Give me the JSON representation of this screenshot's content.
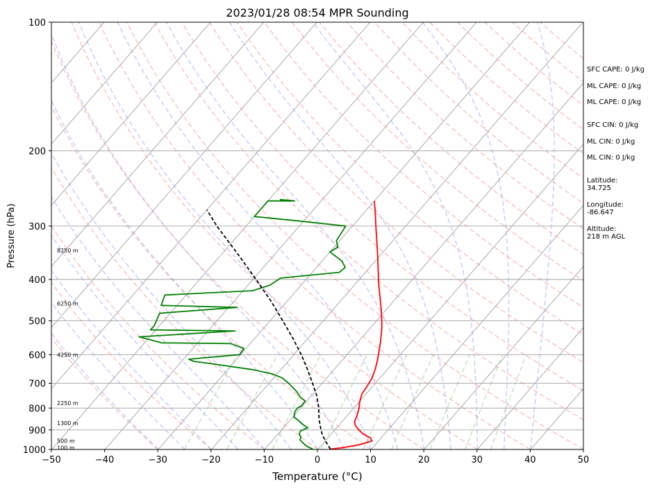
{
  "chart_data": {
    "type": "line",
    "title": "2023/01/28 08:54 MPR Sounding",
    "xlabel": "Temperature (°C)",
    "ylabel": "Pressure (hPa)",
    "xlim": [
      -50,
      50
    ],
    "ylim": [
      1000,
      100
    ],
    "y_scale": "log",
    "x_ticks": [
      "−50",
      "−40",
      "−30",
      "−20",
      "−10",
      "0",
      "10",
      "20",
      "30",
      "40",
      "50"
    ],
    "y_ticks": [
      "100",
      "200",
      "300",
      "400",
      "500",
      "600",
      "700",
      "800",
      "900",
      "1000"
    ],
    "grid": true,
    "skew_t": true,
    "temperature": {
      "color": "#ff0000",
      "points": [
        {
          "p": 998,
          "t": 2.3
        },
        {
          "p": 990,
          "t": 4.5
        },
        {
          "p": 975,
          "t": 7.0
        },
        {
          "p": 955,
          "t": 8.8
        },
        {
          "p": 940,
          "t": 8.0
        },
        {
          "p": 920,
          "t": 6.0
        },
        {
          "p": 900,
          "t": 4.5
        },
        {
          "p": 880,
          "t": 3.2
        },
        {
          "p": 860,
          "t": 2.3
        },
        {
          "p": 840,
          "t": 2.0
        },
        {
          "p": 820,
          "t": 1.5
        },
        {
          "p": 800,
          "t": 1.0
        },
        {
          "p": 780,
          "t": 0.3
        },
        {
          "p": 760,
          "t": -0.3
        },
        {
          "p": 740,
          "t": -0.8
        },
        {
          "p": 720,
          "t": -1.0
        },
        {
          "p": 700,
          "t": -1.2
        },
        {
          "p": 680,
          "t": -1.5
        },
        {
          "p": 650,
          "t": -2.3
        },
        {
          "p": 620,
          "t": -3.3
        },
        {
          "p": 600,
          "t": -4.1
        },
        {
          "p": 560,
          "t": -5.8
        },
        {
          "p": 520,
          "t": -7.8
        },
        {
          "p": 500,
          "t": -9.0
        },
        {
          "p": 470,
          "t": -11.0
        },
        {
          "p": 440,
          "t": -13.2
        },
        {
          "p": 410,
          "t": -15.6
        },
        {
          "p": 380,
          "t": -18.0
        },
        {
          "p": 350,
          "t": -20.6
        },
        {
          "p": 320,
          "t": -23.5
        },
        {
          "p": 300,
          "t": -25.6
        },
        {
          "p": 280,
          "t": -27.8
        },
        {
          "p": 262,
          "t": -30.0
        }
      ]
    },
    "dewpoint": {
      "color": "#008000",
      "points": [
        {
          "p": 998,
          "t": -1.0
        },
        {
          "p": 985,
          "t": -2.4
        },
        {
          "p": 965,
          "t": -3.9
        },
        {
          "p": 950,
          "t": -4.9
        },
        {
          "p": 935,
          "t": -5.2
        },
        {
          "p": 920,
          "t": -6.0
        },
        {
          "p": 905,
          "t": -6.3
        },
        {
          "p": 890,
          "t": -5.4
        },
        {
          "p": 875,
          "t": -6.8
        },
        {
          "p": 855,
          "t": -8.4
        },
        {
          "p": 840,
          "t": -9.8
        },
        {
          "p": 815,
          "t": -10.5
        },
        {
          "p": 800,
          "t": -10.6
        },
        {
          "p": 790,
          "t": -10.2
        },
        {
          "p": 770,
          "t": -10.3
        },
        {
          "p": 755,
          "t": -11.8
        },
        {
          "p": 730,
          "t": -13.6
        },
        {
          "p": 700,
          "t": -16.3
        },
        {
          "p": 680,
          "t": -18.4
        },
        {
          "p": 665,
          "t": -21.0
        },
        {
          "p": 650,
          "t": -25.4
        },
        {
          "p": 630,
          "t": -34.0
        },
        {
          "p": 622,
          "t": -37.7
        },
        {
          "p": 615,
          "t": -39.0
        },
        {
          "p": 600,
          "t": -30.2
        },
        {
          "p": 580,
          "t": -30.4
        },
        {
          "p": 565,
          "t": -33.7
        },
        {
          "p": 563,
          "t": -46.8
        },
        {
          "p": 545,
          "t": -52.0
        },
        {
          "p": 528,
          "t": -34.9
        },
        {
          "p": 525,
          "t": -51.0
        },
        {
          "p": 512,
          "t": -51.0
        },
        {
          "p": 480,
          "t": -52.0
        },
        {
          "p": 465,
          "t": -38.4
        },
        {
          "p": 460,
          "t": -53.0
        },
        {
          "p": 435,
          "t": -54.0
        },
        {
          "p": 425,
          "t": -38.2
        },
        {
          "p": 412,
          "t": -35.8
        },
        {
          "p": 397,
          "t": -35.0
        },
        {
          "p": 385,
          "t": -24.9
        },
        {
          "p": 375,
          "t": -24.6
        },
        {
          "p": 362,
          "t": -26.3
        },
        {
          "p": 345,
          "t": -30.0
        },
        {
          "p": 336,
          "t": -29.3
        },
        {
          "p": 325,
          "t": -30.6
        },
        {
          "p": 310,
          "t": -31.0
        },
        {
          "p": 300,
          "t": -31.3
        },
        {
          "p": 292,
          "t": -40.8
        },
        {
          "p": 285,
          "t": -50.0
        },
        {
          "p": 262,
          "t": -50.0
        },
        {
          "p": 262,
          "t": -45.0
        },
        {
          "p": 260,
          "t": -48.0
        }
      ]
    },
    "parcel": {
      "color": "#000000",
      "points": [
        {
          "p": 998,
          "t": 2.3
        },
        {
          "p": 960,
          "t": 0.3
        },
        {
          "p": 925,
          "t": -1.5
        },
        {
          "p": 900,
          "t": -2.6
        },
        {
          "p": 850,
          "t": -4.7
        },
        {
          "p": 800,
          "t": -6.6
        },
        {
          "p": 750,
          "t": -8.9
        },
        {
          "p": 700,
          "t": -11.8
        },
        {
          "p": 650,
          "t": -15.0
        },
        {
          "p": 600,
          "t": -18.6
        },
        {
          "p": 550,
          "t": -22.8
        },
        {
          "p": 500,
          "t": -27.6
        },
        {
          "p": 450,
          "t": -33.0
        },
        {
          "p": 400,
          "t": -39.4
        },
        {
          "p": 350,
          "t": -46.8
        },
        {
          "p": 300,
          "t": -55.5
        },
        {
          "p": 275,
          "t": -60.0
        }
      ]
    },
    "height_labels": [
      {
        "p": 990,
        "text": "100 m"
      },
      {
        "p": 955,
        "text": "500 m"
      },
      {
        "p": 868,
        "text": "1300 m"
      },
      {
        "p": 778,
        "text": "2250 m"
      },
      {
        "p": 600,
        "text": "4250 m"
      },
      {
        "p": 455,
        "text": "6250 m"
      },
      {
        "p": 342,
        "text": "8250 m"
      }
    ],
    "background_lines": {
      "isotherms_color": "#a0a0a0",
      "dry_adiabats_color": "#ff9999",
      "moist_adiabats_color": "#9999ff",
      "mixing_ratio_color": "#88cc88"
    }
  },
  "stats": {
    "sfc_cape": "SFC CAPE: 0 J/kg",
    "ml_cape_1": "ML CAPE: 0 J/kg",
    "ml_cape_2": "ML CAPE: 0 J/kg",
    "sfc_cin": "SFC CIN: 0 J/kg",
    "ml_cin_1": "ML CIN: 0 J/kg",
    "ml_cin_2": "ML CIN: 0 J/kg",
    "latitude": "Latitude:\n34.725",
    "longitude": "Longitude:\n-86.647",
    "altitude": "Altitude:\n218 m AGL"
  }
}
